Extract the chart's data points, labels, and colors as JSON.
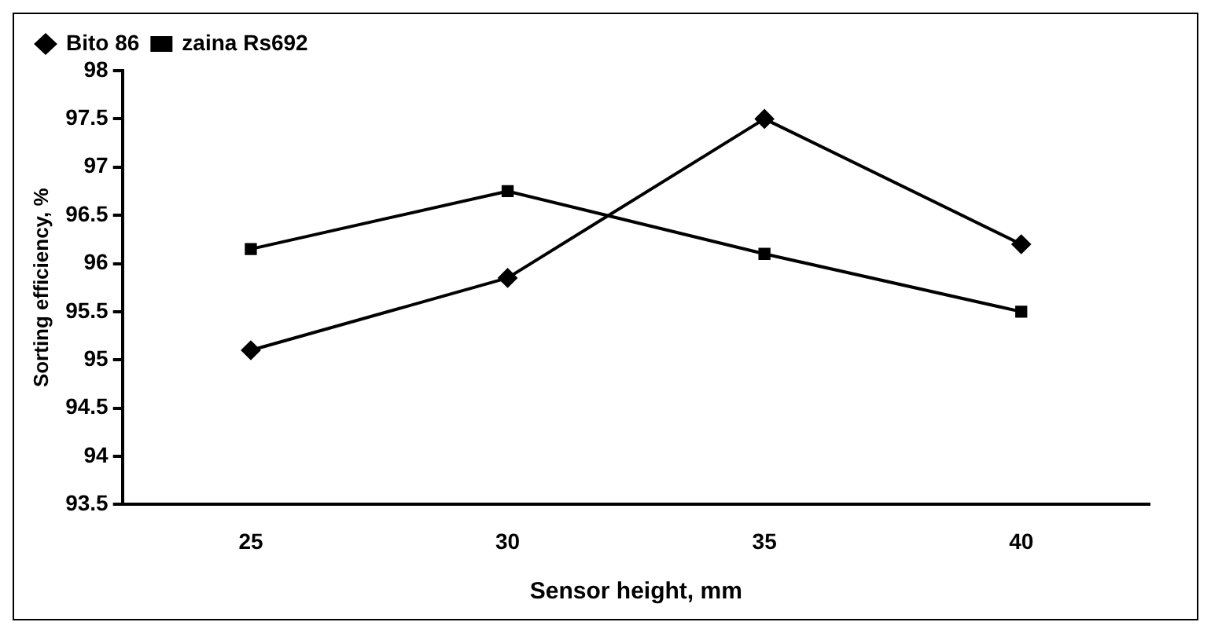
{
  "chart_data": {
    "type": "line",
    "xlabel": "Sensor height, mm",
    "ylabel": "Sorting efficiency, %",
    "categories": [
      "25",
      "30",
      "35",
      "40"
    ],
    "series": [
      {
        "name": "Bito 86",
        "color": "#000000",
        "marker": "diamond",
        "values": [
          95.1,
          95.85,
          97.5,
          96.2
        ]
      },
      {
        "name": "zaina Rs692",
        "color": "#000000",
        "marker": "square",
        "values": [
          96.15,
          96.75,
          96.1,
          95.5
        ]
      }
    ],
    "ylim": [
      93.5,
      98
    ],
    "yticks": [
      93.5,
      94,
      94.5,
      95,
      95.5,
      96,
      96.5,
      97,
      97.5,
      98
    ],
    "grid": false,
    "legend": "top"
  }
}
